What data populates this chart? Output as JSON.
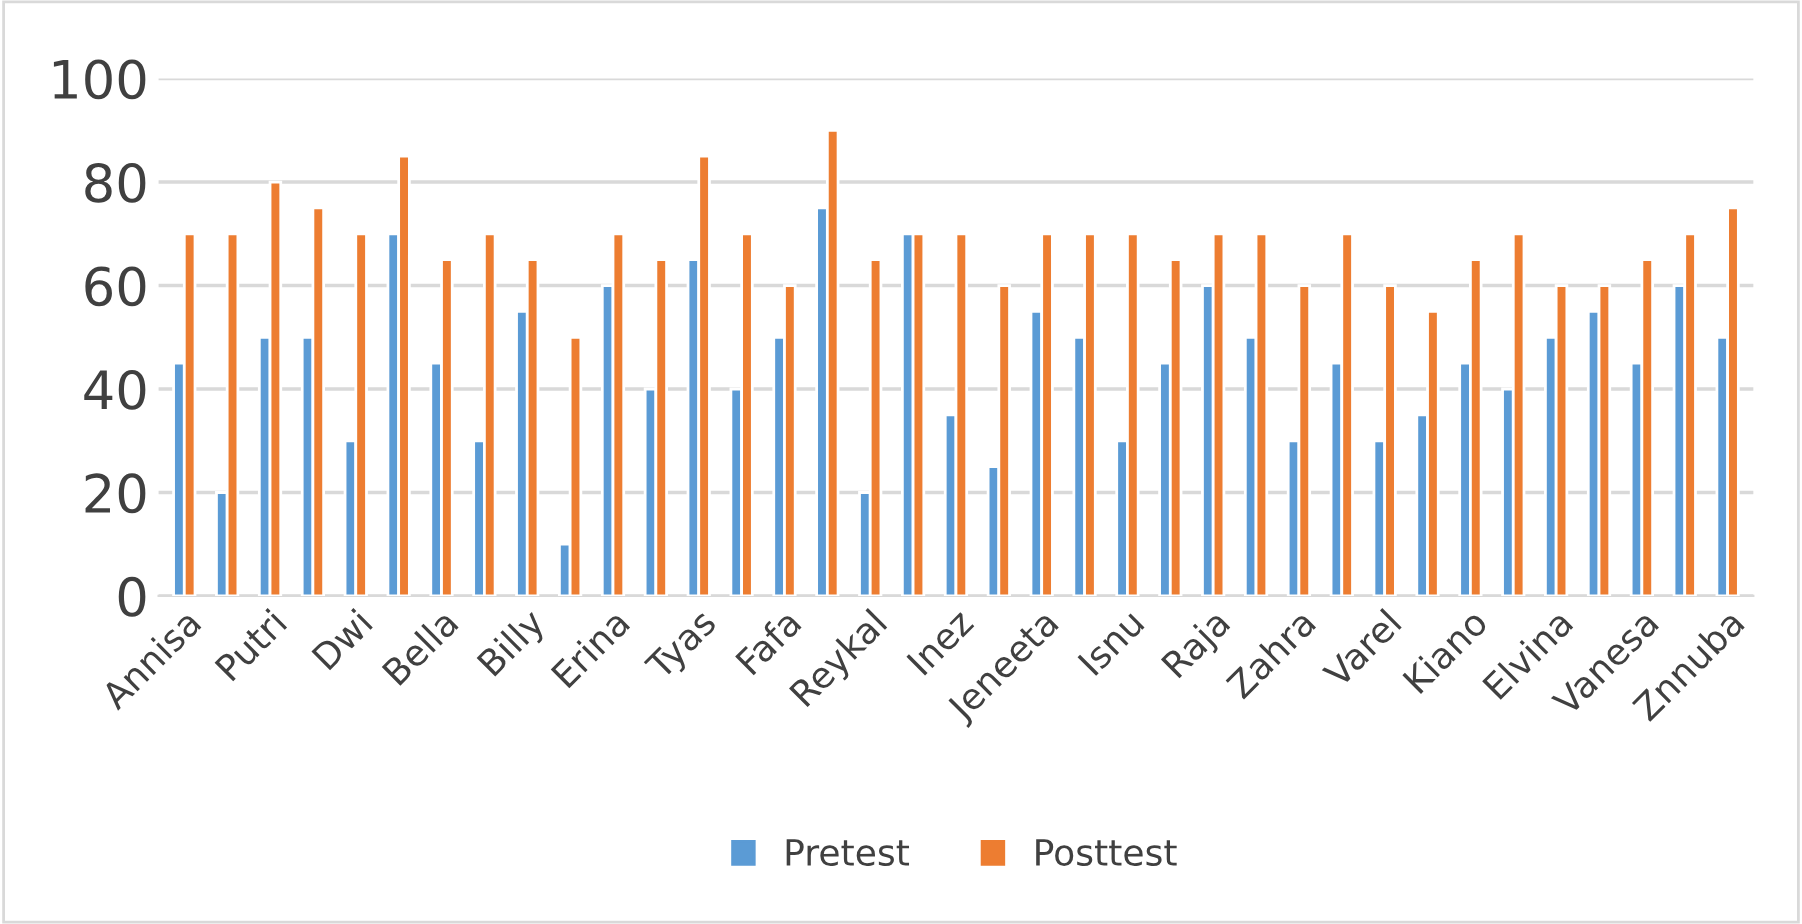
{
  "chart_data": {
    "type": "bar",
    "categories": [
      "Annisa",
      null,
      "Putri",
      null,
      "Dwi",
      null,
      "Bella",
      null,
      "Billy",
      null,
      "Erina",
      null,
      "Tyas",
      null,
      "Fafa",
      null,
      "Reykal",
      null,
      "Inez",
      null,
      "Jeneeta",
      null,
      "Isnu",
      null,
      "Raja",
      null,
      "Zahra",
      null,
      "Varel",
      null,
      "Kiano",
      null,
      "Elvina",
      null,
      "Vanesa",
      null,
      "Znnuba"
    ],
    "series": [
      {
        "name": "Pretest",
        "color": "#5b9bd5",
        "values": [
          45,
          20,
          50,
          50,
          30,
          70,
          45,
          30,
          55,
          10,
          60,
          40,
          65,
          40,
          50,
          75,
          20,
          70,
          35,
          25,
          55,
          50,
          30,
          45,
          60,
          50,
          30,
          45,
          30,
          35,
          45,
          40,
          50,
          55,
          45,
          60,
          50
        ]
      },
      {
        "name": "Posttest",
        "color": "#ed7d31",
        "values": [
          70,
          70,
          80,
          75,
          70,
          85,
          65,
          70,
          65,
          50,
          70,
          65,
          85,
          70,
          60,
          90,
          65,
          70,
          70,
          60,
          70,
          70,
          70,
          65,
          70,
          70,
          60,
          70,
          60,
          55,
          65,
          70,
          60,
          60,
          65,
          70,
          75
        ]
      }
    ],
    "ylim": [
      0,
      100
    ],
    "yticks": [
      0,
      20,
      40,
      60,
      80,
      100
    ],
    "grid": "y",
    "legend": "bottom"
  }
}
